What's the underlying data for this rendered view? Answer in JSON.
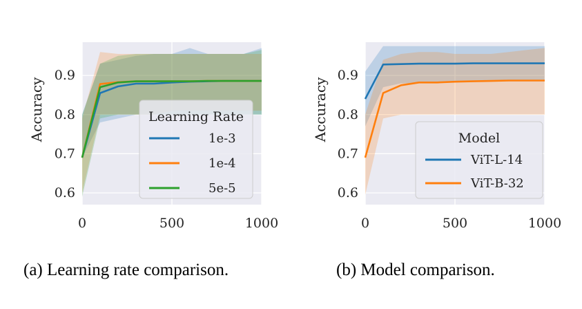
{
  "chart_data": [
    {
      "type": "line",
      "caption": "(a) Learning rate comparison.",
      "xlabel": "",
      "ylabel": "Accuracy",
      "xlim": [
        0,
        1000
      ],
      "ylim": [
        0.57,
        0.985
      ],
      "xticks": [
        0,
        500,
        1000
      ],
      "yticks": [
        0.6,
        0.7,
        0.8,
        0.9
      ],
      "xtick_labels": [
        "0",
        "500",
        "1000"
      ],
      "ytick_labels": [
        "0.6",
        "0.7",
        "0.8",
        "0.9"
      ],
      "grid": true,
      "legend": {
        "title": "Learning Rate",
        "placement": "lower-right"
      },
      "series": [
        {
          "name": "1e-3",
          "color": "#1f77b4",
          "x": [
            0,
            100,
            200,
            300,
            400,
            500,
            600,
            700,
            800,
            900,
            1000
          ],
          "y": [
            0.69,
            0.855,
            0.872,
            0.879,
            0.879,
            0.882,
            0.884,
            0.885,
            0.886,
            0.886,
            0.886
          ],
          "lower": [
            0.69,
            0.78,
            0.79,
            0.8,
            0.8,
            0.8,
            0.8,
            0.8,
            0.8,
            0.8,
            0.8
          ],
          "upper": [
            0.8,
            0.93,
            0.94,
            0.95,
            0.955,
            0.955,
            0.97,
            0.955,
            0.955,
            0.955,
            0.97
          ]
        },
        {
          "name": "1e-4",
          "color": "#ff7f0e",
          "x": [
            0,
            100,
            200,
            300,
            400,
            500,
            600,
            700,
            800,
            900,
            1000
          ],
          "y": [
            0.69,
            0.878,
            0.883,
            0.885,
            0.885,
            0.885,
            0.885,
            0.886,
            0.886,
            0.886,
            0.886
          ],
          "lower": [
            0.6,
            0.8,
            0.8,
            0.8,
            0.8,
            0.81,
            0.81,
            0.81,
            0.81,
            0.81,
            0.81
          ],
          "upper": [
            0.79,
            0.96,
            0.955,
            0.955,
            0.955,
            0.955,
            0.955,
            0.955,
            0.955,
            0.955,
            0.955
          ]
        },
        {
          "name": "5e-5",
          "color": "#2ca02c",
          "x": [
            0,
            100,
            200,
            300,
            400,
            500,
            600,
            700,
            800,
            900,
            1000
          ],
          "y": [
            0.69,
            0.87,
            0.882,
            0.885,
            0.885,
            0.885,
            0.885,
            0.886,
            0.886,
            0.886,
            0.886
          ],
          "lower": [
            0.59,
            0.79,
            0.8,
            0.8,
            0.8,
            0.8,
            0.8,
            0.8,
            0.8,
            0.8,
            0.8
          ],
          "upper": [
            0.8,
            0.93,
            0.95,
            0.955,
            0.955,
            0.955,
            0.955,
            0.955,
            0.955,
            0.955,
            0.965
          ]
        }
      ]
    },
    {
      "type": "line",
      "caption": "(b) Model comparison.",
      "xlabel": "",
      "ylabel": "Accuracy",
      "xlim": [
        0,
        1000
      ],
      "ylim": [
        0.57,
        0.985
      ],
      "xticks": [
        0,
        500,
        1000
      ],
      "yticks": [
        0.6,
        0.7,
        0.8,
        0.9
      ],
      "xtick_labels": [
        "0",
        "500",
        "1000"
      ],
      "ytick_labels": [
        "0.6",
        "0.7",
        "0.8",
        "0.9"
      ],
      "grid": true,
      "legend": {
        "title": "Model",
        "placement": "lower-right"
      },
      "series": [
        {
          "name": "ViT-L-14",
          "color": "#1f77b4",
          "x": [
            0,
            100,
            200,
            300,
            400,
            500,
            600,
            700,
            800,
            900,
            1000
          ],
          "y": [
            0.84,
            0.928,
            0.929,
            0.93,
            0.93,
            0.93,
            0.931,
            0.931,
            0.931,
            0.931,
            0.931
          ],
          "lower": [
            0.77,
            0.87,
            0.88,
            0.88,
            0.88,
            0.885,
            0.885,
            0.885,
            0.885,
            0.885,
            0.885
          ],
          "upper": [
            0.91,
            0.975,
            0.975,
            0.975,
            0.975,
            0.975,
            0.975,
            0.975,
            0.975,
            0.975,
            0.975
          ]
        },
        {
          "name": "ViT-B-32",
          "color": "#ff7f0e",
          "x": [
            0,
            100,
            200,
            300,
            400,
            500,
            600,
            700,
            800,
            900,
            1000
          ],
          "y": [
            0.69,
            0.855,
            0.875,
            0.882,
            0.882,
            0.884,
            0.885,
            0.886,
            0.887,
            0.887,
            0.887
          ],
          "lower": [
            0.595,
            0.79,
            0.8,
            0.8,
            0.8,
            0.8,
            0.8,
            0.8,
            0.8,
            0.8,
            0.8
          ],
          "upper": [
            0.8,
            0.94,
            0.955,
            0.96,
            0.96,
            0.955,
            0.955,
            0.955,
            0.96,
            0.965,
            0.97
          ]
        }
      ]
    }
  ]
}
